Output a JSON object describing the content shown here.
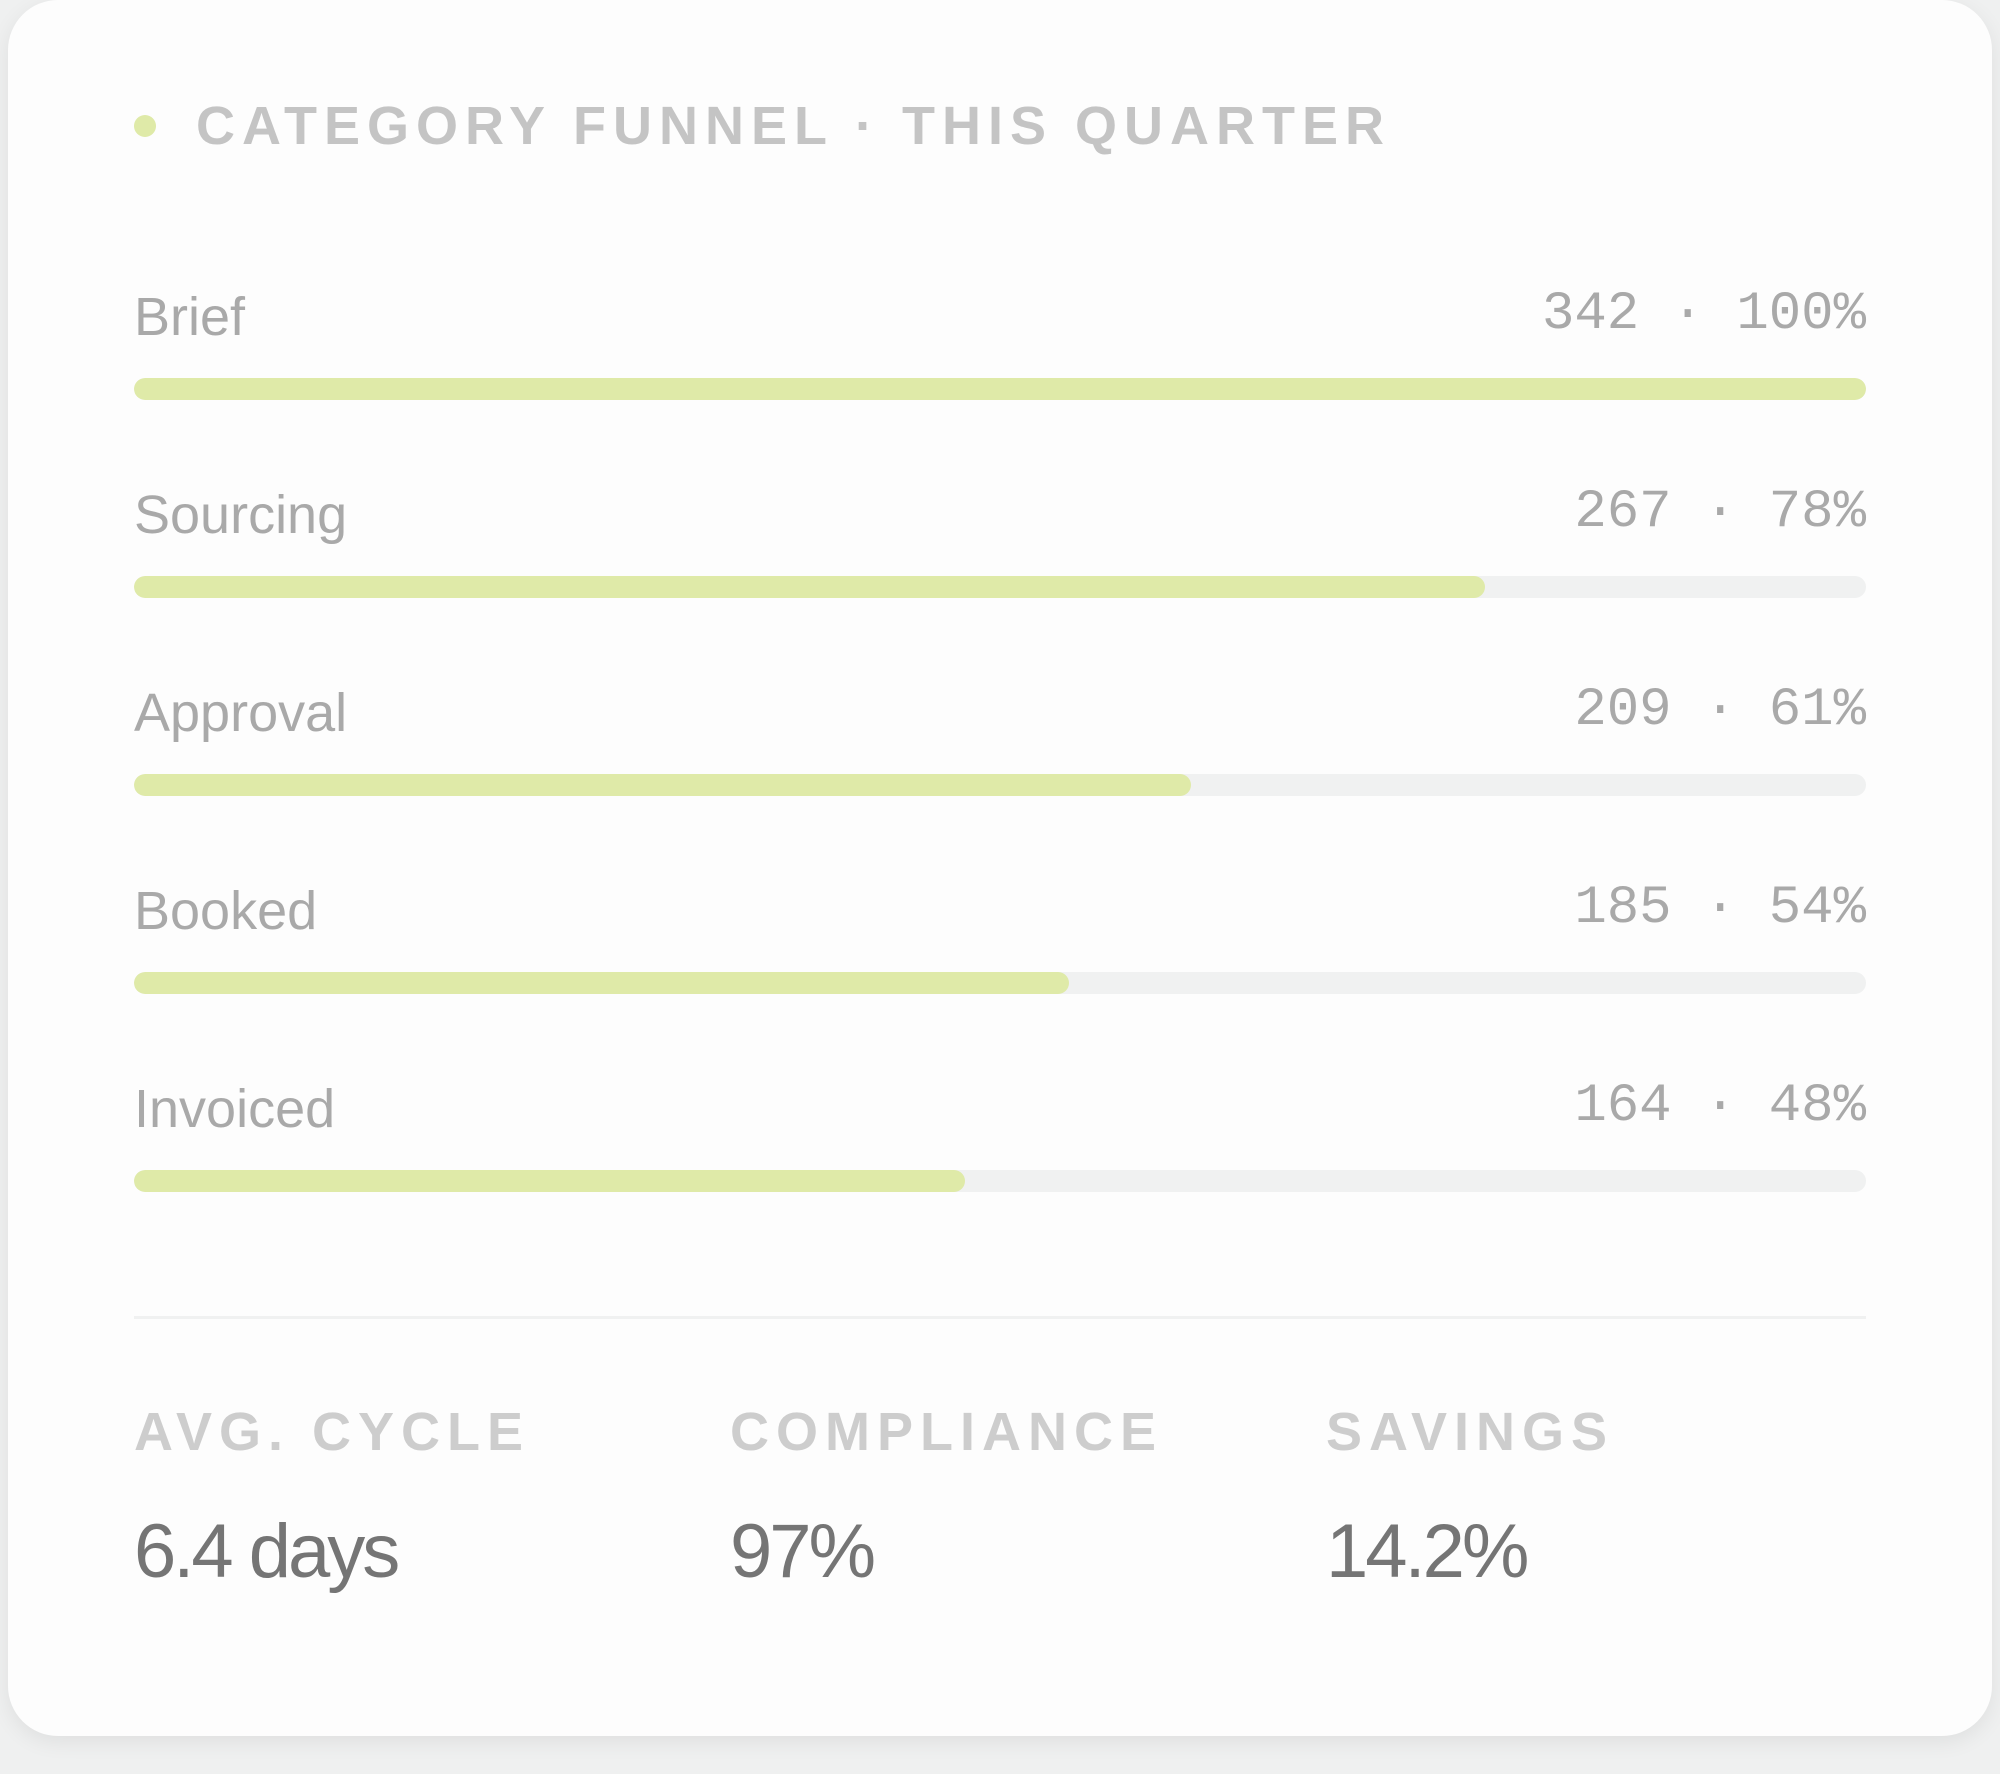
{
  "accent_color": "#dfeaa8",
  "track_color": "#f0f1f1",
  "header": {
    "title": "CATEGORY FUNNEL · THIS QUARTER"
  },
  "chart_data": {
    "type": "bar",
    "orientation": "horizontal",
    "title": "CATEGORY FUNNEL · THIS QUARTER",
    "categories": [
      "Brief",
      "Sourcing",
      "Approval",
      "Booked",
      "Invoiced"
    ],
    "values": [
      342,
      267,
      209,
      185,
      164
    ],
    "percentages": [
      100,
      78,
      61,
      54,
      48
    ],
    "value_labels": [
      "342 · 100%",
      "267 · 78%",
      "209 · 61%",
      "185 · 54%",
      "164 · 48%"
    ],
    "xlim": [
      0,
      100
    ],
    "grid": false
  },
  "stats": [
    {
      "label": "AVG. CYCLE",
      "value": "6.4 days"
    },
    {
      "label": "COMPLIANCE",
      "value": "97%"
    },
    {
      "label": "SAVINGS",
      "value": "14.2%"
    }
  ]
}
